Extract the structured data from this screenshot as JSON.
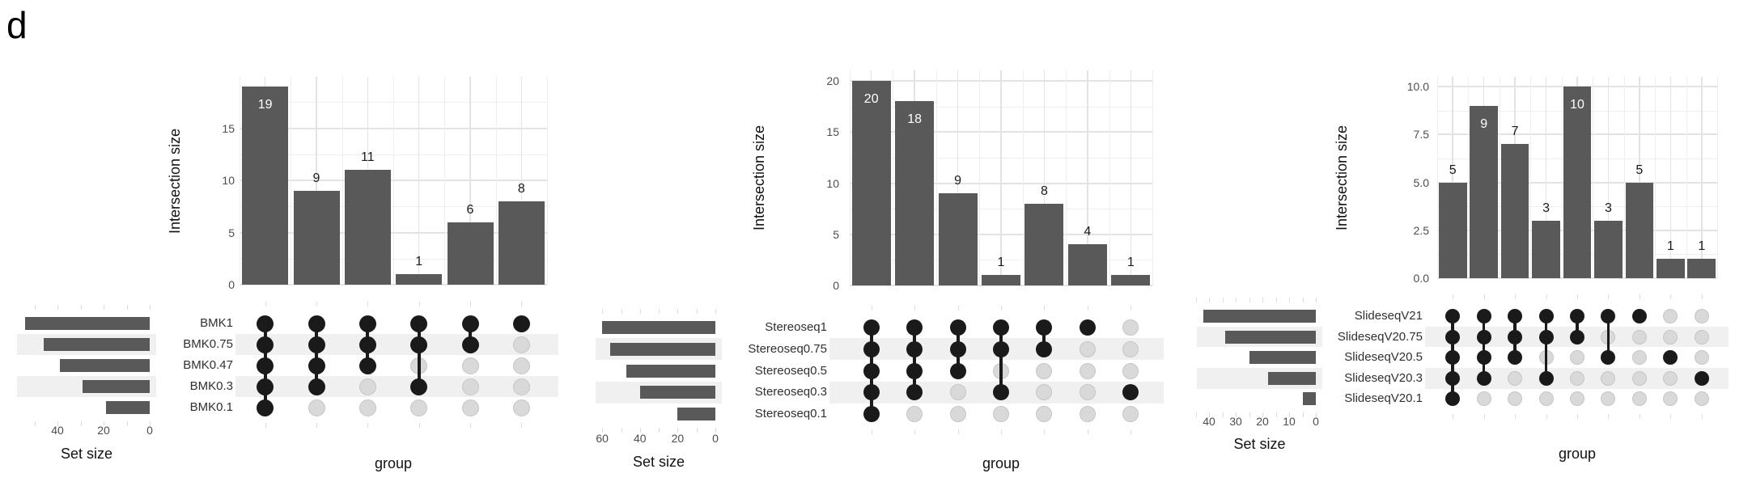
{
  "figure_label": "d",
  "colors": {
    "bar": "#595959",
    "dot_filled": "#1a1a1a",
    "dot_empty": "#d9d9d9",
    "dot_empty_border": "#c6c6c6",
    "stripe": "#f0f0f0",
    "grid_major": "#e3e3e3",
    "grid_minor": "#efefef",
    "stub": "#dcdcdc",
    "tick_text": "#4d4d4d",
    "value_text": "#1a1a1a",
    "value_text_inside": "#ffffff"
  },
  "chart_data": [
    {
      "type": "upset-bar-matrix",
      "sets": [
        "BMK1",
        "BMK0.75",
        "BMK0.47",
        "BMK0.3",
        "BMK0.1"
      ],
      "set_sizes": [
        54,
        46,
        39,
        29,
        19
      ],
      "set_size_axis": {
        "label": "Set size",
        "ticks": [
          {
            "v": 40,
            "t": "40"
          },
          {
            "v": 20,
            "t": "20"
          },
          {
            "v": 0,
            "t": "0"
          }
        ]
      },
      "intersection_axis": {
        "label": "Intersection size",
        "ticks": [
          {
            "v": 0,
            "t": "0"
          },
          {
            "v": 5,
            "t": "5"
          },
          {
            "v": 10,
            "t": "10"
          },
          {
            "v": 15,
            "t": "15"
          }
        ]
      },
      "group_axis": {
        "label": "group"
      },
      "intersections": [
        {
          "size": 19,
          "members": [
            1,
            1,
            1,
            1,
            1
          ],
          "label_inside": true
        },
        {
          "size": 9,
          "members": [
            1,
            1,
            1,
            1,
            0
          ],
          "label_inside": false
        },
        {
          "size": 11,
          "members": [
            1,
            1,
            1,
            0,
            0
          ],
          "label_inside": false
        },
        {
          "size": 1,
          "members": [
            1,
            1,
            0,
            1,
            0
          ],
          "label_inside": false
        },
        {
          "size": 6,
          "members": [
            1,
            1,
            0,
            0,
            0
          ],
          "label_inside": false
        },
        {
          "size": 8,
          "members": [
            1,
            0,
            0,
            0,
            0
          ],
          "label_inside": false
        }
      ]
    },
    {
      "type": "upset-bar-matrix",
      "sets": [
        "Stereoseq1",
        "Stereoseq0.75",
        "Stereoseq0.5",
        "Stereoseq0.3",
        "Stereoseq0.1"
      ],
      "set_sizes": [
        60,
        56,
        47,
        40,
        20
      ],
      "set_size_axis": {
        "label": "Set size",
        "ticks": [
          {
            "v": 60,
            "t": "60"
          },
          {
            "v": 40,
            "t": "40"
          },
          {
            "v": 20,
            "t": "20"
          },
          {
            "v": 0,
            "t": "0"
          }
        ]
      },
      "intersection_axis": {
        "label": "Intersection size",
        "ticks": [
          {
            "v": 0,
            "t": "0"
          },
          {
            "v": 5,
            "t": "5"
          },
          {
            "v": 10,
            "t": "10"
          },
          {
            "v": 15,
            "t": "15"
          },
          {
            "v": 20,
            "t": "20"
          }
        ]
      },
      "group_axis": {
        "label": "group"
      },
      "intersections": [
        {
          "size": 20,
          "members": [
            1,
            1,
            1,
            1,
            1
          ],
          "label_inside": true
        },
        {
          "size": 18,
          "members": [
            1,
            1,
            1,
            1,
            0
          ],
          "label_inside": true
        },
        {
          "size": 9,
          "members": [
            1,
            1,
            1,
            0,
            0
          ],
          "label_inside": false
        },
        {
          "size": 1,
          "members": [
            1,
            1,
            0,
            1,
            0
          ],
          "label_inside": false
        },
        {
          "size": 8,
          "members": [
            1,
            1,
            0,
            0,
            0
          ],
          "label_inside": false
        },
        {
          "size": 4,
          "members": [
            1,
            0,
            0,
            0,
            0
          ],
          "label_inside": false
        },
        {
          "size": 1,
          "members": [
            0,
            0,
            0,
            1,
            0
          ],
          "label_inside": false
        }
      ]
    },
    {
      "type": "upset-bar-matrix",
      "sets": [
        "SlideseqV21",
        "SlideseqV20.75",
        "SlideseqV20.5",
        "SlideseqV20.3",
        "SlideseqV20.1"
      ],
      "set_sizes": [
        42,
        34,
        25,
        18,
        5
      ],
      "set_size_axis": {
        "label": "Set size",
        "ticks": [
          {
            "v": 40,
            "t": "40"
          },
          {
            "v": 30,
            "t": "30"
          },
          {
            "v": 20,
            "t": "20"
          },
          {
            "v": 10,
            "t": "10"
          },
          {
            "v": 0,
            "t": "0"
          }
        ]
      },
      "intersection_axis": {
        "label": "Intersection size",
        "ticks": [
          {
            "v": 0,
            "t": "0.0"
          },
          {
            "v": 2.5,
            "t": "2.5"
          },
          {
            "v": 5,
            "t": "5.0"
          },
          {
            "v": 7.5,
            "t": "7.5"
          },
          {
            "v": 10,
            "t": "10.0"
          }
        ]
      },
      "group_axis": {
        "label": "group"
      },
      "intersections": [
        {
          "size": 5,
          "members": [
            1,
            1,
            1,
            1,
            1
          ],
          "label_inside": false
        },
        {
          "size": 9,
          "members": [
            1,
            1,
            1,
            1,
            0
          ],
          "label_inside": true
        },
        {
          "size": 7,
          "members": [
            1,
            1,
            1,
            0,
            0
          ],
          "label_inside": false
        },
        {
          "size": 3,
          "members": [
            1,
            1,
            0,
            1,
            0
          ],
          "label_inside": false
        },
        {
          "size": 10,
          "members": [
            1,
            1,
            0,
            0,
            0
          ],
          "label_inside": true
        },
        {
          "size": 3,
          "members": [
            1,
            0,
            1,
            0,
            0
          ],
          "label_inside": false
        },
        {
          "size": 5,
          "members": [
            1,
            0,
            0,
            0,
            0
          ],
          "label_inside": false
        },
        {
          "size": 1,
          "members": [
            0,
            0,
            1,
            0,
            0
          ],
          "label_inside": false
        },
        {
          "size": 1,
          "members": [
            0,
            0,
            0,
            1,
            0
          ],
          "label_inside": false
        }
      ]
    }
  ]
}
